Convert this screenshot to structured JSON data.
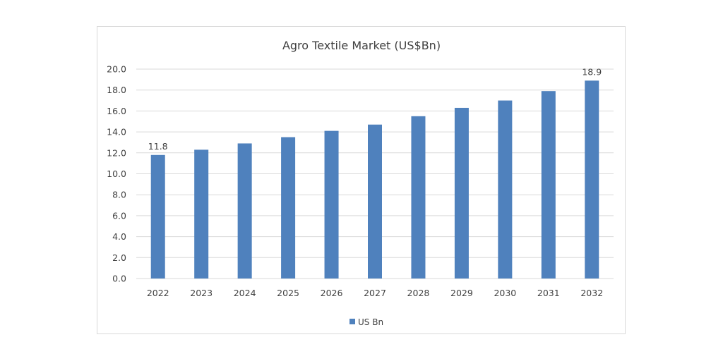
{
  "chart_data": {
    "type": "bar",
    "title": "Agro Textile Market (US$Bn)",
    "xlabel": "",
    "ylabel": "",
    "categories": [
      "2022",
      "2023",
      "2024",
      "2025",
      "2026",
      "2027",
      "2028",
      "2029",
      "2030",
      "2031",
      "2032"
    ],
    "series": [
      {
        "name": "US Bn",
        "values": [
          11.8,
          12.3,
          12.9,
          13.5,
          14.1,
          14.7,
          15.5,
          16.3,
          17.0,
          17.9,
          18.9
        ],
        "color": "#4f81bd"
      }
    ],
    "ylim": [
      0,
      20
    ],
    "yticks": [
      "0.0",
      "2.0",
      "4.0",
      "6.0",
      "8.0",
      "10.0",
      "12.0",
      "14.0",
      "16.0",
      "18.0",
      "20.0"
    ],
    "data_labels": {
      "2022": "11.8",
      "2032": "18.9"
    },
    "grid": true,
    "legend_position": "bottom"
  }
}
